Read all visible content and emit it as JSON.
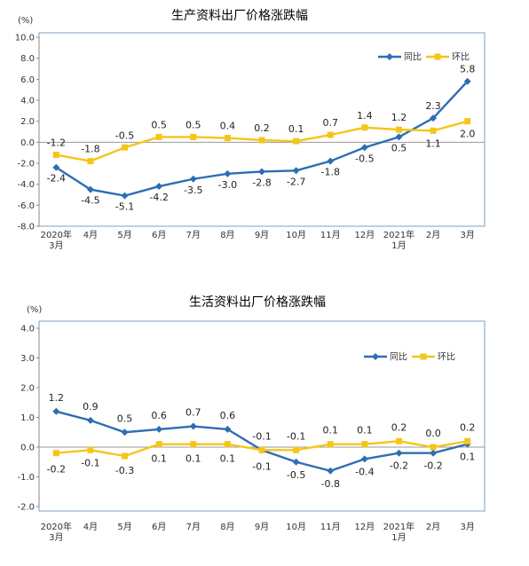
{
  "chart_data": [
    {
      "type": "line",
      "title": "生产资料出厂价格涨跌幅",
      "unit_label": "(%)",
      "categories": [
        [
          "2020年",
          "3月"
        ],
        [
          "4月"
        ],
        [
          "5月"
        ],
        [
          "6月"
        ],
        [
          "7月"
        ],
        [
          "8月"
        ],
        [
          "9月"
        ],
        [
          "10月"
        ],
        [
          "11月"
        ],
        [
          "12月"
        ],
        [
          "2021年",
          "1月"
        ],
        [
          "2月"
        ],
        [
          "3月"
        ]
      ],
      "ylim": [
        -8.0,
        10.0
      ],
      "yticks": [
        "10.0",
        "8.0",
        "6.0",
        "4.0",
        "2.0",
        "0.0",
        "-2.0",
        "-4.0",
        "-6.0",
        "-8.0"
      ],
      "legend": "top-right",
      "series": [
        {
          "name": "同比",
          "color": "#2E6DB4",
          "marker": "diamond",
          "values": [
            -2.4,
            -4.5,
            -5.1,
            -4.2,
            -3.5,
            -3.0,
            -2.8,
            -2.7,
            -1.8,
            -0.5,
            0.5,
            2.3,
            5.8
          ],
          "labels": [
            "-2.4",
            "-4.5",
            "-5.1",
            "-4.2",
            "-3.5",
            "-3.0",
            "-2.8",
            "-2.7",
            "-1.8",
            "-0.5",
            "0.5",
            "2.3",
            "5.8"
          ]
        },
        {
          "name": "环比",
          "color": "#F5C518",
          "marker": "square",
          "values": [
            -1.2,
            -1.8,
            -0.5,
            0.5,
            0.5,
            0.4,
            0.2,
            0.1,
            0.7,
            1.4,
            1.2,
            1.1,
            2.0
          ],
          "labels": [
            "-1.2",
            "-1.8",
            "-0.5",
            "0.5",
            "0.5",
            "0.4",
            "0.2",
            "0.1",
            "0.7",
            "1.4",
            "1.2",
            "1.1",
            "2.0"
          ]
        }
      ]
    },
    {
      "type": "line",
      "title": "生活资料出厂价格涨跌幅",
      "unit_label": "(%)",
      "categories": [
        [
          "2020年",
          "3月"
        ],
        [
          "4月"
        ],
        [
          "5月"
        ],
        [
          "6月"
        ],
        [
          "7月"
        ],
        [
          "8月"
        ],
        [
          "9月"
        ],
        [
          "10月"
        ],
        [
          "11月"
        ],
        [
          "12月"
        ],
        [
          "2021年",
          "1月"
        ],
        [
          "2月"
        ],
        [
          "3月"
        ]
      ],
      "ylim": [
        -2.0,
        4.0
      ],
      "yticks": [
        "4.0",
        "3.0",
        "2.0",
        "1.0",
        "0.0",
        "-1.0",
        "-2.0"
      ],
      "legend": "top-right",
      "series": [
        {
          "name": "同比",
          "color": "#2E6DB4",
          "marker": "diamond",
          "values": [
            1.2,
            0.9,
            0.5,
            0.6,
            0.7,
            0.6,
            -0.1,
            -0.5,
            -0.8,
            -0.4,
            -0.2,
            -0.2,
            0.1
          ],
          "labels": [
            "1.2",
            "0.9",
            "0.5",
            "0.6",
            "0.7",
            "0.6",
            "-0.1",
            "-0.5",
            "-0.8",
            "-0.4",
            "-0.2",
            "-0.2",
            "0.1"
          ]
        },
        {
          "name": "环比",
          "color": "#F5C518",
          "marker": "square",
          "values": [
            -0.2,
            -0.1,
            -0.3,
            0.1,
            0.1,
            0.1,
            -0.1,
            -0.1,
            0.1,
            0.1,
            0.2,
            0.0,
            0.2
          ],
          "labels": [
            "-0.2",
            "-0.1",
            "-0.3",
            "0.1",
            "0.1",
            "0.1",
            "-0.1",
            "-0.1",
            "0.1",
            "0.1",
            "0.2",
            "0.0",
            "0.2"
          ]
        }
      ]
    }
  ]
}
